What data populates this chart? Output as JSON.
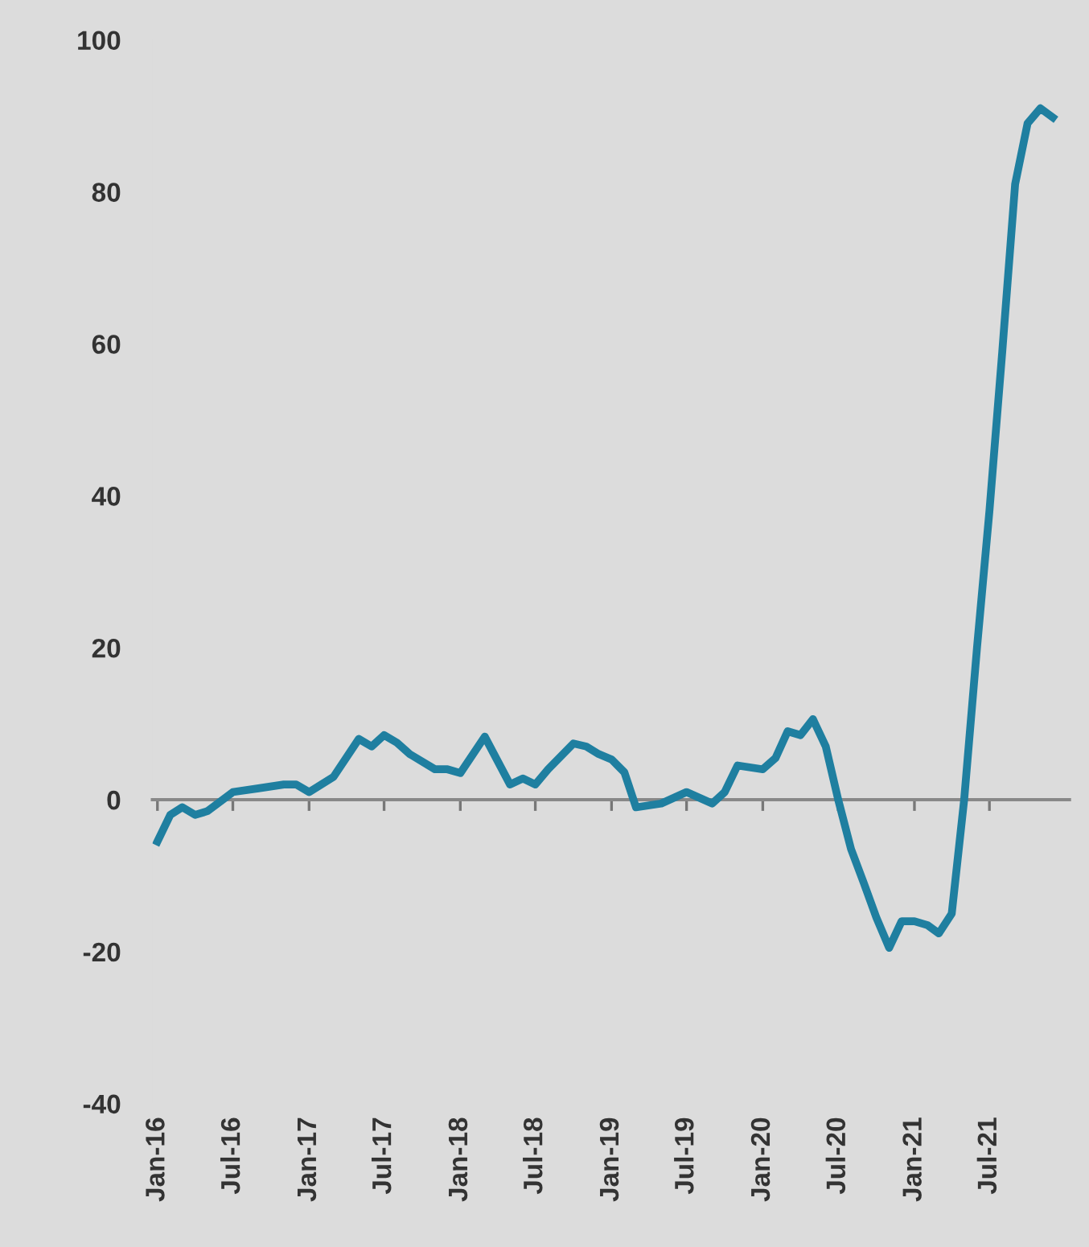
{
  "chart_data": {
    "type": "line",
    "x": [
      "2016-01",
      "2016-02",
      "2016-03",
      "2016-04",
      "2016-05",
      "2016-07",
      "2016-09",
      "2016-11",
      "2016-12",
      "2017-01",
      "2017-03",
      "2017-05",
      "2017-06",
      "2017-07",
      "2017-08",
      "2017-09",
      "2017-11",
      "2017-12",
      "2018-01",
      "2018-03",
      "2018-05",
      "2018-06",
      "2018-07",
      "2018-08",
      "2018-10",
      "2018-11",
      "2018-12",
      "2019-01",
      "2019-02",
      "2019-03",
      "2019-05",
      "2019-07",
      "2019-09",
      "2019-10",
      "2019-11",
      "2020-01",
      "2020-02",
      "2020-03",
      "2020-04",
      "2020-05",
      "2020-06",
      "2020-07",
      "2020-08",
      "2020-09",
      "2020-10",
      "2020-11",
      "2020-12",
      "2021-01",
      "2021-02",
      "2021-03",
      "2021-04",
      "2021-05",
      "2021-06",
      "2021-07",
      "2021-08",
      "2021-09",
      "2021-10",
      "2021-11",
      "2021-12"
    ],
    "series": [
      {
        "color": "#1f7fa0",
        "values": [
          -5.5,
          -2,
          -1,
          -2,
          -1.5,
          1,
          1.5,
          2,
          2,
          1,
          3,
          8,
          7,
          8.5,
          7.5,
          6,
          4,
          4,
          3.5,
          8.3,
          2,
          2.8,
          2,
          4,
          7.4,
          7,
          6,
          5.3,
          3.6,
          -1,
          -0.5,
          1,
          -0.5,
          1,
          4.5,
          4,
          5.5,
          9,
          8.5,
          10.6,
          7,
          0,
          -6.5,
          -11,
          -15.5,
          -19.5,
          -16,
          -16,
          -16.5,
          -17.6,
          -15,
          0,
          20,
          38,
          59,
          81,
          89,
          91,
          89.8
        ]
      }
    ],
    "xlim": [
      "2015-12-20",
      "2022-01-10"
    ],
    "xticks": [
      {
        "value": "2016-01",
        "label": "Jan-16"
      },
      {
        "value": "2016-07",
        "label": "Jul-16"
      },
      {
        "value": "2017-01",
        "label": "Jan-17"
      },
      {
        "value": "2017-07",
        "label": "Jul-17"
      },
      {
        "value": "2018-01",
        "label": "Jan-18"
      },
      {
        "value": "2018-07",
        "label": "Jul-18"
      },
      {
        "value": "2019-01",
        "label": "Jan-19"
      },
      {
        "value": "2019-07",
        "label": "Jul-19"
      },
      {
        "value": "2020-01",
        "label": "Jan-20"
      },
      {
        "value": "2020-07",
        "label": "Jul-20"
      },
      {
        "value": "2021-01",
        "label": "Jan-21"
      },
      {
        "value": "2021-07",
        "label": "Jul-21"
      }
    ],
    "ylim": [
      -40,
      100
    ],
    "yticks": [
      -40,
      -20,
      0,
      20,
      40,
      60,
      80,
      100
    ],
    "line_style": "solid",
    "marker": "none"
  }
}
